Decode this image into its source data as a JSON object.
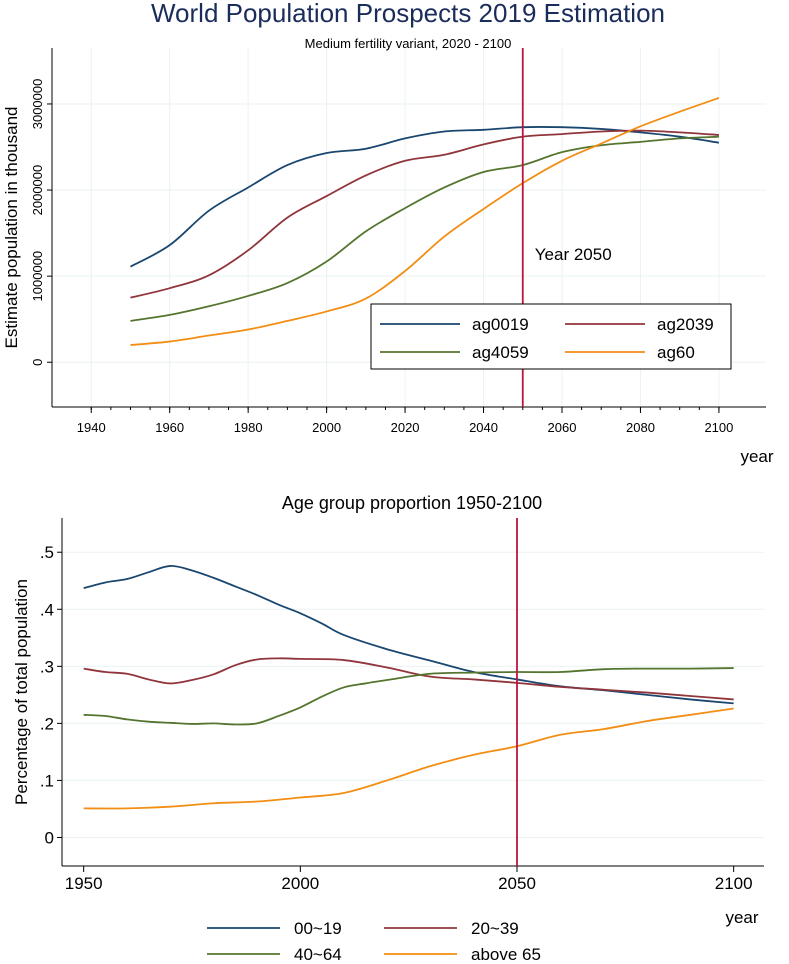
{
  "chart_data": [
    {
      "type": "line",
      "title": "World Population Prospects 2019 Estimation",
      "subtitle": "Medium fertility variant, 2020 - 2100",
      "xlabel": "year",
      "ylabel": "Estimate population in thousand",
      "xlim": [
        1930,
        2112
      ],
      "ylim": [
        -520000,
        3650000
      ],
      "x_ticks": [
        1940,
        1960,
        1980,
        2000,
        2020,
        2040,
        2060,
        2080,
        2100
      ],
      "y_ticks": [
        0,
        1000000,
        2000000,
        3000000
      ],
      "y_tick_labels": [
        "0",
        "1000000",
        "2000000",
        "3000000"
      ],
      "reference_line": {
        "x": 2050,
        "label": "Year 2050",
        "color": "#c0143c"
      },
      "legend": {
        "position": "bottom-right inside",
        "columns": 2
      },
      "series": [
        {
          "name": "ag0019",
          "color": "#1a476f",
          "x": [
            1950,
            1960,
            1970,
            1980,
            1990,
            2000,
            2010,
            2020,
            2030,
            2040,
            2050,
            2060,
            2070,
            2080,
            2090,
            2100
          ],
          "values": [
            1110000,
            1360000,
            1760000,
            2030000,
            2290000,
            2430000,
            2480000,
            2600000,
            2680000,
            2700000,
            2730000,
            2730000,
            2710000,
            2670000,
            2620000,
            2550000
          ]
        },
        {
          "name": "ag2039",
          "color": "#90353b",
          "x": [
            1950,
            1960,
            1970,
            1980,
            1990,
            2000,
            2010,
            2020,
            2030,
            2040,
            2050,
            2060,
            2070,
            2080,
            2090,
            2100
          ],
          "values": [
            750000,
            860000,
            1010000,
            1300000,
            1680000,
            1930000,
            2170000,
            2340000,
            2410000,
            2530000,
            2620000,
            2650000,
            2680000,
            2690000,
            2670000,
            2640000
          ]
        },
        {
          "name": "ag4059",
          "color": "#55752f",
          "x": [
            1950,
            1960,
            1970,
            1980,
            1990,
            2000,
            2010,
            2020,
            2030,
            2040,
            2050,
            2060,
            2070,
            2080,
            2090,
            2100
          ],
          "values": [
            480000,
            550000,
            650000,
            770000,
            920000,
            1170000,
            1520000,
            1790000,
            2030000,
            2210000,
            2290000,
            2440000,
            2520000,
            2560000,
            2600000,
            2620000
          ]
        },
        {
          "name": "ag60",
          "color": "#f28e14",
          "x": [
            1950,
            1960,
            1970,
            1980,
            1990,
            2000,
            2010,
            2020,
            2030,
            2040,
            2050,
            2060,
            2070,
            2080,
            2090,
            2100
          ],
          "values": [
            200000,
            240000,
            310000,
            380000,
            480000,
            590000,
            740000,
            1060000,
            1460000,
            1780000,
            2080000,
            2340000,
            2540000,
            2740000,
            2910000,
            3070000
          ]
        }
      ]
    },
    {
      "type": "line",
      "title": "Age group proportion 1950-2100",
      "xlabel": "year",
      "ylabel": "Percentage of total population",
      "xlim": [
        1945,
        2107
      ],
      "ylim": [
        -0.05,
        0.56
      ],
      "x_ticks": [
        1950,
        2000,
        2050,
        2100
      ],
      "y_ticks": [
        0,
        0.1,
        0.2,
        0.3,
        0.4,
        0.5
      ],
      "y_tick_labels": [
        "0",
        ".1",
        ".2",
        ".3",
        ".4",
        ".5"
      ],
      "reference_line": {
        "x": 2050,
        "color": "#c0143c"
      },
      "legend": {
        "position": "bottom outside",
        "columns": 2
      },
      "series": [
        {
          "name": "00~19",
          "color": "#1a476f",
          "x": [
            1950,
            1955,
            1960,
            1965,
            1970,
            1975,
            1980,
            1985,
            1990,
            1995,
            2000,
            2005,
            2010,
            2020,
            2030,
            2040,
            2050,
            2060,
            2070,
            2080,
            2090,
            2100
          ],
          "values": [
            0.437,
            0.447,
            0.453,
            0.465,
            0.476,
            0.468,
            0.455,
            0.44,
            0.425,
            0.408,
            0.393,
            0.375,
            0.355,
            0.33,
            0.31,
            0.29,
            0.277,
            0.265,
            0.258,
            0.25,
            0.242,
            0.235
          ]
        },
        {
          "name": "20~39",
          "color": "#90353b",
          "x": [
            1950,
            1955,
            1960,
            1965,
            1970,
            1975,
            1980,
            1985,
            1990,
            1995,
            2000,
            2010,
            2020,
            2030,
            2040,
            2050,
            2060,
            2070,
            2080,
            2090,
            2100
          ],
          "values": [
            0.296,
            0.29,
            0.287,
            0.277,
            0.27,
            0.276,
            0.286,
            0.302,
            0.312,
            0.314,
            0.313,
            0.311,
            0.298,
            0.282,
            0.277,
            0.271,
            0.264,
            0.259,
            0.254,
            0.248,
            0.242
          ]
        },
        {
          "name": "40~64",
          "color": "#55752f",
          "x": [
            1950,
            1955,
            1960,
            1965,
            1970,
            1975,
            1980,
            1985,
            1990,
            1995,
            2000,
            2005,
            2010,
            2015,
            2020,
            2030,
            2040,
            2050,
            2060,
            2070,
            2080,
            2090,
            2100
          ],
          "values": [
            0.215,
            0.213,
            0.207,
            0.203,
            0.201,
            0.199,
            0.2,
            0.198,
            0.2,
            0.213,
            0.228,
            0.247,
            0.263,
            0.27,
            0.276,
            0.287,
            0.289,
            0.29,
            0.29,
            0.295,
            0.296,
            0.296,
            0.297
          ]
        },
        {
          "name": "above 65",
          "color": "#f28e14",
          "x": [
            1950,
            1960,
            1970,
            1980,
            1990,
            2000,
            2010,
            2020,
            2030,
            2040,
            2050,
            2060,
            2070,
            2080,
            2090,
            2100
          ],
          "values": [
            0.051,
            0.051,
            0.054,
            0.06,
            0.063,
            0.07,
            0.078,
            0.1,
            0.125,
            0.145,
            0.16,
            0.18,
            0.19,
            0.204,
            0.215,
            0.226
          ]
        }
      ]
    }
  ]
}
